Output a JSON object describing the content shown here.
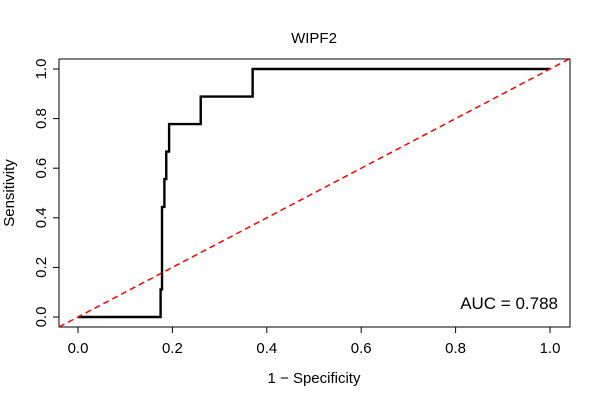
{
  "chart_data": {
    "type": "line",
    "title": "WIPF2",
    "xlabel": "1 − Specificity",
    "ylabel": "Sensitivity",
    "xlim": [
      0,
      1
    ],
    "ylim": [
      0,
      1
    ],
    "xticks": [
      "0.0",
      "0.2",
      "0.4",
      "0.6",
      "0.8",
      "1.0"
    ],
    "yticks": [
      "0.0",
      "0.2",
      "0.4",
      "0.6",
      "0.8",
      "1.0"
    ],
    "grid": false,
    "annotation": "AUC = 0.788",
    "series": [
      {
        "line_color": "#000000",
        "line_style": "solid",
        "points": [
          [
            0.0,
            0.0
          ],
          [
            0.175,
            0.0
          ],
          [
            0.175,
            0.111
          ],
          [
            0.178,
            0.111
          ],
          [
            0.178,
            0.444
          ],
          [
            0.183,
            0.444
          ],
          [
            0.183,
            0.556
          ],
          [
            0.187,
            0.556
          ],
          [
            0.187,
            0.667
          ],
          [
            0.193,
            0.667
          ],
          [
            0.193,
            0.778
          ],
          [
            0.26,
            0.778
          ],
          [
            0.26,
            0.889
          ],
          [
            0.37,
            0.889
          ],
          [
            0.37,
            1.0
          ],
          [
            1.0,
            1.0
          ]
        ]
      },
      {
        "line_color": "#ff0000",
        "line_style": "dashed",
        "points": [
          [
            -0.04,
            -0.04
          ],
          [
            1.04,
            1.04
          ]
        ]
      }
    ]
  }
}
